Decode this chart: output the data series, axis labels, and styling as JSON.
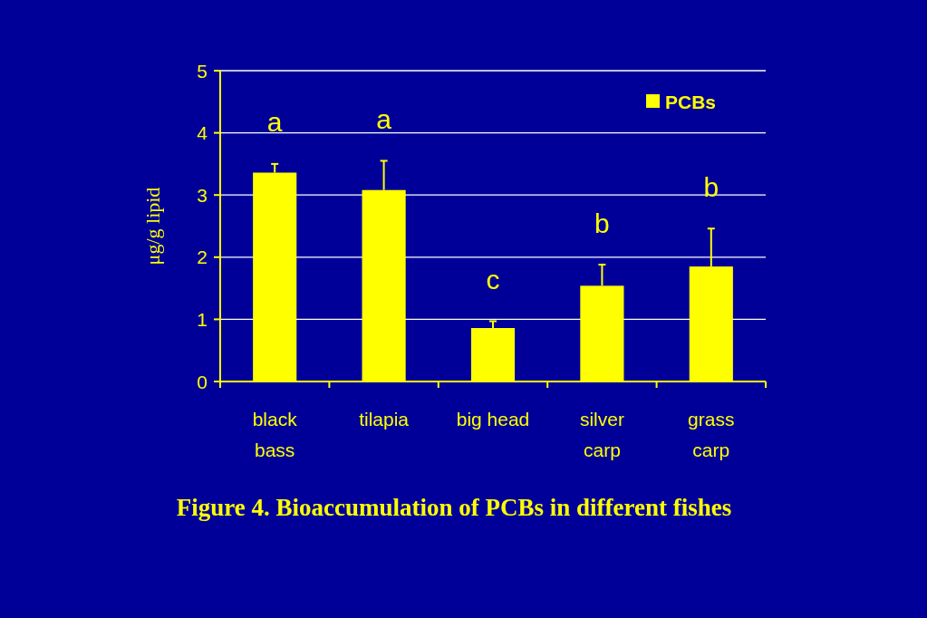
{
  "chart_data": {
    "type": "bar",
    "title": "Figure 4. Bioaccumulation of PCBs in different fishes",
    "ylabel": "μg/g lipid",
    "categories": [
      "black\nbass",
      "tilapia",
      "big head",
      "silver\ncarp",
      "grass\ncarp"
    ],
    "series": [
      {
        "name": "PCBs",
        "color": "#ffff00",
        "values": [
          3.36,
          3.08,
          0.86,
          1.54,
          1.85
        ],
        "errors": [
          [
            3.36,
            3.5
          ],
          [
            3.08,
            3.55
          ],
          [
            0.86,
            0.97
          ],
          [
            1.54,
            1.88
          ],
          [
            1.85,
            2.46
          ]
        ]
      }
    ],
    "ylim": [
      0,
      5
    ],
    "yticks": [
      0,
      1,
      2,
      3,
      4,
      5
    ],
    "grid": "y",
    "legend": "top right",
    "annotations": [
      "a",
      "a",
      "c",
      "b",
      "b"
    ]
  }
}
